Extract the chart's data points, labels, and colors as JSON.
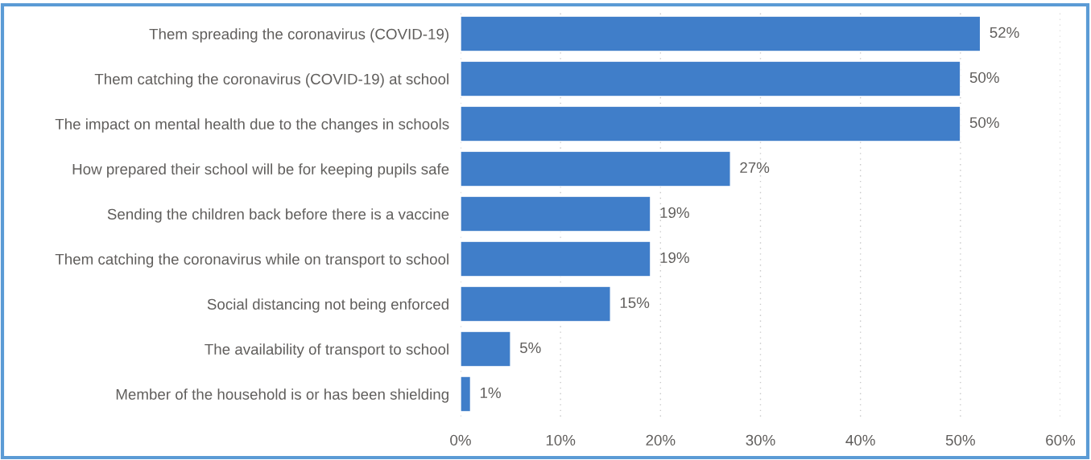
{
  "chart_data": {
    "type": "bar",
    "orientation": "horizontal",
    "categories": [
      "Them spreading the coronavirus (COVID-19)",
      "Them catching the coronavirus (COVID-19) at school",
      "The impact on mental health due to the changes in schools",
      "How prepared their school will be for keeping pupils safe",
      "Sending the children back before there is a vaccine",
      "Them catching the coronavirus while on transport to school",
      "Social distancing not being enforced",
      "The availability of transport to school",
      "Member of the household is or has been shielding"
    ],
    "values": [
      52,
      50,
      50,
      27,
      19,
      19,
      15,
      5,
      1
    ],
    "value_labels": [
      "52%",
      "50%",
      "50%",
      "27%",
      "19%",
      "19%",
      "15%",
      "5%",
      "1%"
    ],
    "color": "#407ec9",
    "xlim": [
      0,
      60
    ],
    "xticks": [
      {
        "value": 0,
        "label": "0%"
      },
      {
        "value": 10,
        "label": "10%"
      },
      {
        "value": 20,
        "label": "20%"
      },
      {
        "value": 30,
        "label": "30%"
      },
      {
        "value": 40,
        "label": "40%"
      },
      {
        "value": 50,
        "label": "50%"
      },
      {
        "value": 60,
        "label": "60%"
      }
    ],
    "grid": "x"
  }
}
